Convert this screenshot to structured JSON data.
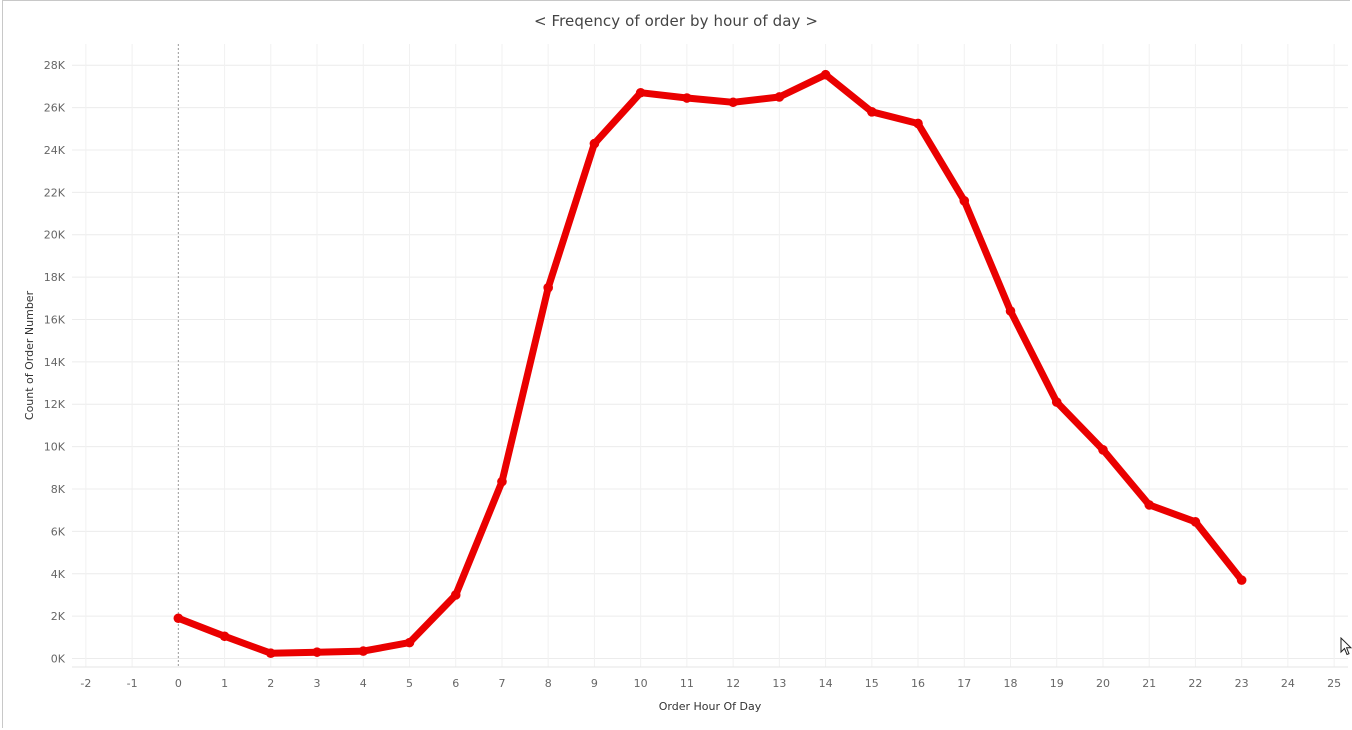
{
  "chart_data": {
    "type": "line",
    "title": "< Freqency of order by hour of day >",
    "xlabel": "Order Hour Of Day",
    "ylabel": "Count of Order Number",
    "xlim": [
      -2.3,
      25.3
    ],
    "ylim": [
      -400,
      29000
    ],
    "x_ticks": [
      -2,
      -1,
      0,
      1,
      2,
      3,
      4,
      5,
      6,
      7,
      8,
      9,
      10,
      11,
      12,
      13,
      14,
      15,
      16,
      17,
      18,
      19,
      20,
      21,
      22,
      23,
      24,
      25
    ],
    "y_ticks": [
      {
        "value": 0,
        "label": "0K"
      },
      {
        "value": 2000,
        "label": "2K"
      },
      {
        "value": 4000,
        "label": "4K"
      },
      {
        "value": 6000,
        "label": "6K"
      },
      {
        "value": 8000,
        "label": "8K"
      },
      {
        "value": 10000,
        "label": "10K"
      },
      {
        "value": 12000,
        "label": "12K"
      },
      {
        "value": 14000,
        "label": "14K"
      },
      {
        "value": 16000,
        "label": "16K"
      },
      {
        "value": 18000,
        "label": "18K"
      },
      {
        "value": 20000,
        "label": "20K"
      },
      {
        "value": 22000,
        "label": "22K"
      },
      {
        "value": 24000,
        "label": "24K"
      },
      {
        "value": 26000,
        "label": "26K"
      },
      {
        "value": 28000,
        "label": "28K"
      }
    ],
    "grid": true,
    "series": [
      {
        "color": "#ea0000",
        "x": [
          0,
          1,
          2,
          3,
          4,
          5,
          6,
          7,
          8,
          9,
          10,
          11,
          12,
          13,
          14,
          15,
          16,
          17,
          18,
          19,
          20,
          21,
          22,
          23
        ],
        "y": [
          1900,
          1050,
          250,
          300,
          350,
          750,
          3000,
          8350,
          17500,
          24300,
          26700,
          26450,
          26250,
          26500,
          27550,
          25800,
          25250,
          21600,
          16400,
          12100,
          9850,
          7250,
          6450,
          3700
        ]
      }
    ]
  }
}
